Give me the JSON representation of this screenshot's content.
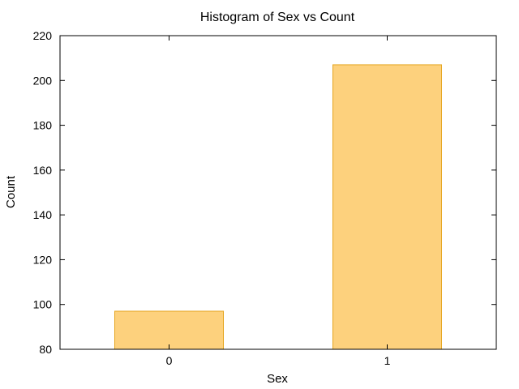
{
  "chart_data": {
    "type": "bar",
    "title": "Histogram of Sex vs Count",
    "xlabel": "Sex",
    "ylabel": "Count",
    "categories": [
      "0",
      "1"
    ],
    "values": [
      97,
      207
    ],
    "ylim": [
      80,
      220
    ],
    "yticks": [
      80,
      100,
      120,
      140,
      160,
      180,
      200,
      220
    ],
    "grid": false,
    "legend": "none",
    "colors": {
      "bar_fill": "#fdd17d",
      "bar_stroke": "#e5a51f",
      "axis": "#000000",
      "background": "#ffffff"
    }
  }
}
